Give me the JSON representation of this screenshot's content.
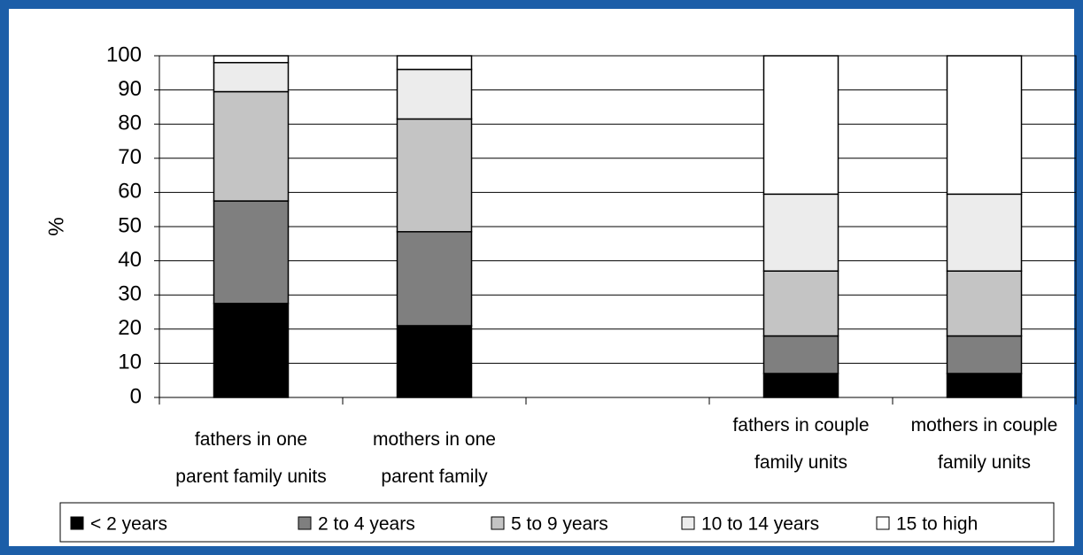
{
  "chart_data": {
    "type": "bar",
    "stacked": true,
    "y_label": "%",
    "categories": [
      "fathers in one\nparent family units",
      "mothers in one\nparent family",
      null,
      "fathers in couple\nfamily units",
      "mothers in couple\nfamily units"
    ],
    "series": [
      {
        "name": "< 2 years",
        "color": "#000000",
        "values": [
          27.5,
          21,
          null,
          7,
          7
        ]
      },
      {
        "name": "2 to 4 years",
        "color": "#7f7f7f",
        "values": [
          30,
          27.5,
          null,
          11,
          11
        ]
      },
      {
        "name": "5 to 9 years",
        "color": "#c4c4c4",
        "values": [
          32,
          33,
          null,
          19,
          19
        ]
      },
      {
        "name": "10 to 14 years",
        "color": "#ececec",
        "values": [
          8.5,
          14.5,
          null,
          22.5,
          22.5
        ]
      },
      {
        "name": "15 to high",
        "color": "#ffffff",
        "values": [
          2,
          4,
          null,
          40.5,
          40.5
        ]
      }
    ],
    "ylim": [
      0,
      100
    ],
    "yticks": [
      0,
      10,
      20,
      30,
      40,
      50,
      60,
      70,
      80,
      90,
      100
    ],
    "grid": true
  }
}
